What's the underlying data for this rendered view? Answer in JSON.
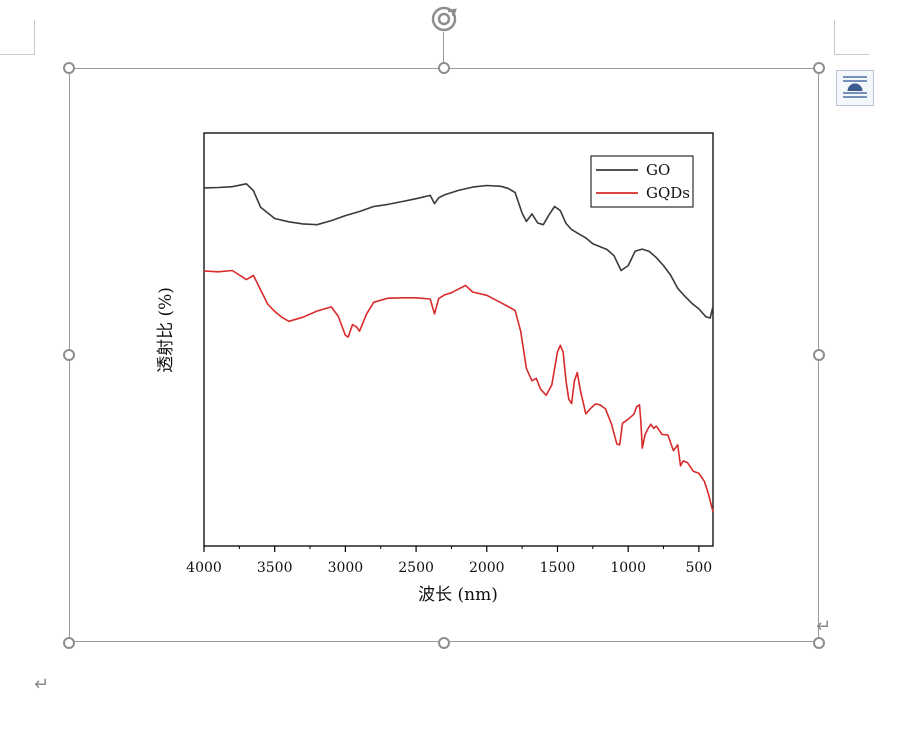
{
  "document": {
    "paragraph_mark": "↵",
    "rotate_icon": "rotate-icon",
    "layout_options_icon": "text-wrap-icon"
  },
  "chart_data": {
    "type": "line",
    "title": "",
    "xlabel": "波长 (nm)",
    "ylabel": "透射比 (%)",
    "xlim": [
      4000,
      400
    ],
    "x_reversed": true,
    "xticks": [
      4000,
      3500,
      3000,
      2500,
      2000,
      1500,
      1000,
      500
    ],
    "ylim": [
      0,
      100
    ],
    "y_ticks_shown": false,
    "legend_position": "top-right",
    "series": [
      {
        "name": "GO",
        "color": "#3a3a3a",
        "x": [
          4000,
          3900,
          3800,
          3700,
          3650,
          3600,
          3500,
          3400,
          3300,
          3200,
          3100,
          3000,
          2900,
          2800,
          2700,
          2600,
          2500,
          2400,
          2370,
          2340,
          2300,
          2200,
          2100,
          2000,
          1900,
          1850,
          1800,
          1750,
          1720,
          1680,
          1640,
          1600,
          1560,
          1520,
          1480,
          1440,
          1400,
          1350,
          1300,
          1250,
          1200,
          1150,
          1100,
          1050,
          1000,
          950,
          900,
          850,
          800,
          750,
          700,
          650,
          600,
          550,
          500,
          450,
          420,
          400
        ],
        "y": [
          86.7,
          86.8,
          87.0,
          87.7,
          86.0,
          82.0,
          79.3,
          78.5,
          78.0,
          77.8,
          78.8,
          80.0,
          81.0,
          82.2,
          82.7,
          83.4,
          84.1,
          84.9,
          82.9,
          84.3,
          85.0,
          86.1,
          86.9,
          87.3,
          87.1,
          86.6,
          85.6,
          80.6,
          78.6,
          80.4,
          78.2,
          77.8,
          80.2,
          82.2,
          81.2,
          78.1,
          76.6,
          75.6,
          74.6,
          73.2,
          72.5,
          71.8,
          70.3,
          66.7,
          67.9,
          71.4,
          71.9,
          71.3,
          69.8,
          67.9,
          65.6,
          62.4,
          60.5,
          58.8,
          57.4,
          55.5,
          55.2,
          58.0
        ]
      },
      {
        "name": "GQDs",
        "color": "#d92b2b",
        "x": [
          4000,
          3900,
          3800,
          3700,
          3650,
          3600,
          3550,
          3500,
          3450,
          3400,
          3300,
          3200,
          3100,
          3050,
          3000,
          2980,
          2950,
          2920,
          2900,
          2850,
          2800,
          2700,
          2600,
          2500,
          2400,
          2370,
          2340,
          2300,
          2250,
          2200,
          2150,
          2100,
          2000,
          1900,
          1850,
          1800,
          1760,
          1720,
          1680,
          1650,
          1620,
          1580,
          1540,
          1500,
          1480,
          1460,
          1440,
          1420,
          1400,
          1380,
          1360,
          1340,
          1300,
          1260,
          1230,
          1200,
          1160,
          1120,
          1080,
          1060,
          1040,
          1000,
          960,
          940,
          920,
          910,
          900,
          880,
          860,
          840,
          820,
          800,
          760,
          720,
          680,
          650,
          630,
          610,
          580,
          540,
          500,
          460,
          430,
          410,
          400
        ],
        "y": [
          66.6,
          66.4,
          66.7,
          64.5,
          65.5,
          62.0,
          58.6,
          56.8,
          55.4,
          54.4,
          55.4,
          56.9,
          57.9,
          55.6,
          51.0,
          50.6,
          53.6,
          53.0,
          52.0,
          56.2,
          59.0,
          60.0,
          60.1,
          60.1,
          59.8,
          56.2,
          59.9,
          60.8,
          61.3,
          62.2,
          63.1,
          61.5,
          60.7,
          58.9,
          58.0,
          57.0,
          52.0,
          43.0,
          40.0,
          40.6,
          38.0,
          36.5,
          39.0,
          47.0,
          48.6,
          47.0,
          40.0,
          35.5,
          34.5,
          40.0,
          42.0,
          38.0,
          32.0,
          33.5,
          34.4,
          34.2,
          33.2,
          29.7,
          24.7,
          24.5,
          29.7,
          30.7,
          31.9,
          33.7,
          34.2,
          30.0,
          23.7,
          27.0,
          28.4,
          29.5,
          28.5,
          29.0,
          27.0,
          26.9,
          23.1,
          24.5,
          19.4,
          20.6,
          20.2,
          18.1,
          17.6,
          15.6,
          12.3,
          9.6,
          8.3
        ]
      }
    ]
  }
}
